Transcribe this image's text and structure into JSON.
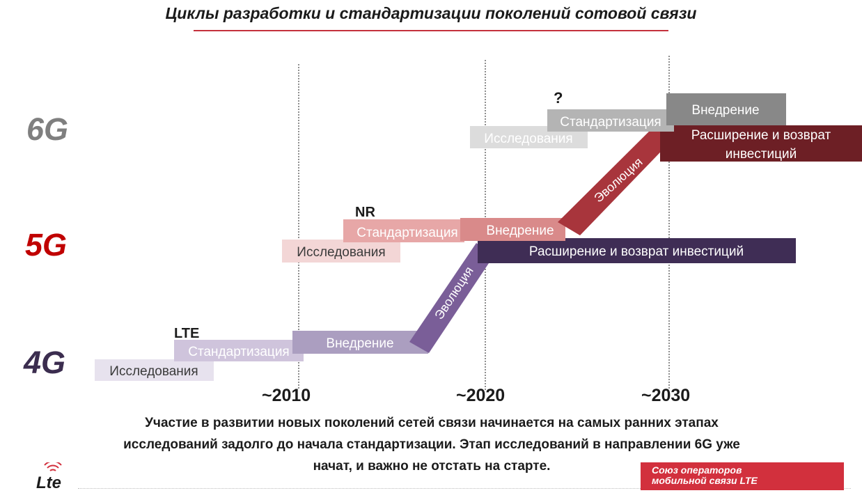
{
  "title": "Циклы разработки и стандартизации поколений сотовой связи",
  "generations": {
    "g6": "6G",
    "g5": "5G",
    "g4": "4G"
  },
  "axis_ticks": [
    "~2010",
    "~2020",
    "~2030"
  ],
  "tech": {
    "lte": "LTE",
    "nr": "NR",
    "unknown": "?"
  },
  "phases": {
    "research": "Исследования",
    "standardization": "Стандартизация",
    "deployment": "Внедрение",
    "evolution": "Эволюция",
    "expansion_line1": "Расширение и возврат",
    "expansion_line2": "инвестиций",
    "expansion_full": "Расширение и возврат инвестиций"
  },
  "caption": {
    "line1": "Участие в развитии новых поколений сетей связи начинается на самых ранних этапах",
    "line2": "исследований задолго до начала стандартизации. Этап исследований в направлении 6G уже",
    "line3": "начат, и важно не отстать на старте."
  },
  "footer": {
    "logo": "Lte",
    "badge_line1": "Союз операторов",
    "badge_line2": "мобильной связи LTE"
  },
  "colors": {
    "title_rule": "#c4303c",
    "g4_research": "#e7e2ee",
    "g4_standard": "#cfc4dc",
    "g4_deploy": "#ab9ec0",
    "g4_evolution": "#7a5e98",
    "g4_expansion": "#3f2d55",
    "g5_research": "#f3d6d6",
    "g5_standard": "#e7a7a7",
    "g5_deploy": "#d98a8a",
    "g5_evolution": "#a8353c",
    "g5_expansion": "#6d1f25",
    "g6_research": "#dcdcdc",
    "g6_standard": "#b4b4b4",
    "g6_deploy": "#888888",
    "badge": "#d2303d"
  }
}
